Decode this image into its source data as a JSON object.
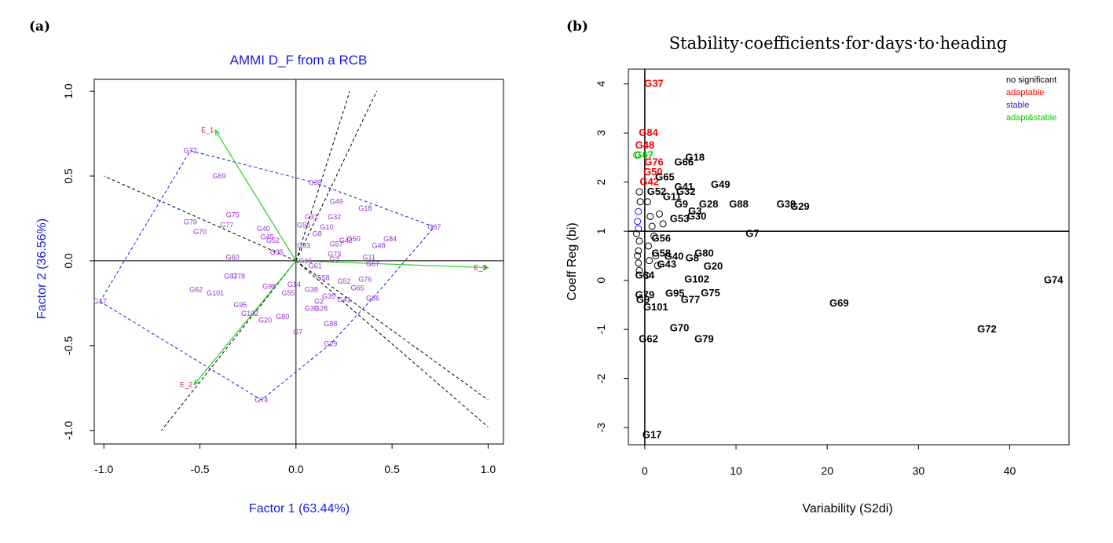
{
  "panel_a_label": "(a)",
  "panel_b_label": "(b)",
  "chart_data": [
    {
      "type": "scatter",
      "title": "AMMI D_F from a RCB",
      "xlabel": "Factor 1 (63.44%)",
      "ylabel": "Factor 2 (36.56%)",
      "xlim": [
        -1.05,
        1.08
      ],
      "ylim": [
        -1.08,
        1.07
      ],
      "xticks": [
        "-1.0",
        "-0.5",
        "0.0",
        "0.5",
        "1.0"
      ],
      "yticks": [
        "-1.0",
        "-0.5",
        "0.0",
        "0.5",
        "1.0"
      ],
      "genotype_color": "#9a2fd0",
      "environment_color": "#d7192c",
      "vector_color": "#1fd01f",
      "hull_color": "#1a1ae6",
      "environments": [
        {
          "label": "E_1",
          "x": -0.42,
          "y": 0.77
        },
        {
          "label": "E_2",
          "x": -0.53,
          "y": -0.73
        },
        {
          "label": "E_3",
          "x": 1.0,
          "y": -0.04
        }
      ],
      "genotypes": [
        {
          "label": "G72",
          "x": -0.55,
          "y": 0.65
        },
        {
          "label": "G69",
          "x": -0.4,
          "y": 0.5
        },
        {
          "label": "G75",
          "x": -0.33,
          "y": 0.27
        },
        {
          "label": "G79",
          "x": -0.55,
          "y": 0.23
        },
        {
          "label": "G77",
          "x": -0.36,
          "y": 0.21
        },
        {
          "label": "G70",
          "x": -0.5,
          "y": 0.17
        },
        {
          "label": "G39",
          "x": 0.1,
          "y": 0.46
        },
        {
          "label": "G49",
          "x": 0.21,
          "y": 0.35
        },
        {
          "label": "G18",
          "x": 0.36,
          "y": 0.31
        },
        {
          "label": "G37",
          "x": 0.72,
          "y": 0.2
        },
        {
          "label": "G84",
          "x": 0.49,
          "y": 0.13
        },
        {
          "label": "G48",
          "x": 0.43,
          "y": 0.09
        },
        {
          "label": "G50",
          "x": 0.3,
          "y": 0.13
        },
        {
          "label": "G42",
          "x": 0.26,
          "y": 0.12
        },
        {
          "label": "G32",
          "x": 0.2,
          "y": 0.26
        },
        {
          "label": "G31",
          "x": 0.08,
          "y": 0.26
        },
        {
          "label": "G10",
          "x": 0.16,
          "y": 0.2
        },
        {
          "label": "G56",
          "x": 0.04,
          "y": 0.21
        },
        {
          "label": "G11",
          "x": 0.38,
          "y": 0.02
        },
        {
          "label": "G57",
          "x": 0.21,
          "y": 0.1
        },
        {
          "label": "G40",
          "x": -0.17,
          "y": 0.19
        },
        {
          "label": "G45",
          "x": -0.15,
          "y": 0.14
        },
        {
          "label": "G52",
          "x": -0.12,
          "y": 0.12
        },
        {
          "label": "G60",
          "x": -0.33,
          "y": 0.02
        },
        {
          "label": "G35",
          "x": -0.1,
          "y": 0.05
        },
        {
          "label": "G97",
          "x": -0.34,
          "y": -0.09
        },
        {
          "label": "G78",
          "x": -0.3,
          "y": -0.09
        },
        {
          "label": "G62",
          "x": -0.52,
          "y": -0.17
        },
        {
          "label": "G101",
          "x": -0.42,
          "y": -0.19
        },
        {
          "label": "G95",
          "x": -0.29,
          "y": -0.26
        },
        {
          "label": "G17",
          "x": -1.02,
          "y": -0.24
        },
        {
          "label": "G102",
          "x": -0.24,
          "y": -0.31
        },
        {
          "label": "G20",
          "x": -0.16,
          "y": -0.35
        },
        {
          "label": "G80",
          "x": -0.07,
          "y": -0.33
        },
        {
          "label": "G98",
          "x": -0.14,
          "y": -0.15
        },
        {
          "label": "G55",
          "x": -0.04,
          "y": -0.19
        },
        {
          "label": "G7",
          "x": 0.01,
          "y": -0.42
        },
        {
          "label": "G74",
          "x": -0.18,
          "y": -0.82
        },
        {
          "label": "G88",
          "x": 0.18,
          "y": -0.37
        },
        {
          "label": "G29",
          "x": 0.18,
          "y": -0.49
        },
        {
          "label": "G30",
          "x": 0.08,
          "y": -0.28
        },
        {
          "label": "G28",
          "x": 0.13,
          "y": -0.28
        },
        {
          "label": "G2",
          "x": 0.12,
          "y": -0.24
        },
        {
          "label": "G41",
          "x": 0.25,
          "y": -0.23
        },
        {
          "label": "G35",
          "x": 0.17,
          "y": -0.21
        },
        {
          "label": "G66",
          "x": 0.4,
          "y": -0.22
        },
        {
          "label": "G65",
          "x": 0.32,
          "y": -0.16
        },
        {
          "label": "G76",
          "x": 0.36,
          "y": -0.11
        },
        {
          "label": "G52",
          "x": 0.25,
          "y": -0.12
        },
        {
          "label": "G58",
          "x": 0.14,
          "y": -0.1
        },
        {
          "label": "G67",
          "x": 0.4,
          "y": -0.02
        },
        {
          "label": "G73",
          "x": 0.2,
          "y": 0.04
        },
        {
          "label": "G3",
          "x": 0.2,
          "y": 0.01
        },
        {
          "label": "G14",
          "x": -0.01,
          "y": -0.14
        },
        {
          "label": "G93",
          "x": 0.04,
          "y": 0.09
        },
        {
          "label": "G61",
          "x": 0.1,
          "y": -0.03
        },
        {
          "label": "G38",
          "x": 0.08,
          "y": -0.17
        },
        {
          "label": "G8",
          "x": 0.11,
          "y": 0.16
        },
        {
          "label": "G16",
          "x": 0.05,
          "y": 0.0
        }
      ],
      "environment_rays": [
        {
          "x2": 0.28,
          "y2": 1.0
        },
        {
          "x2": 0.42,
          "y2": 1.0
        },
        {
          "x2": 1.0,
          "y2": -0.82
        },
        {
          "x2": 1.0,
          "y2": -0.98
        },
        {
          "x2": -1.0,
          "y2": 0.5
        },
        {
          "x2": -0.7,
          "y2": -1.0
        }
      ]
    },
    {
      "type": "scatter",
      "title": "Stability·coefficients·for·days·to·heading",
      "xlabel": "Variability (S2di)",
      "ylabel": "Coeff Reg (bi)",
      "xlim": [
        -1.8,
        46.5
      ],
      "ylim": [
        -3.35,
        4.3
      ],
      "xticks": [
        "0",
        "10",
        "20",
        "30",
        "40"
      ],
      "yticks": [
        "-3",
        "-2",
        "-1",
        "0",
        "1",
        "2",
        "3",
        "4"
      ],
      "reference_lines": {
        "x": 0,
        "y": 1
      },
      "legend_position": "top-right",
      "legend": [
        {
          "label": "no significant",
          "color": "#000000"
        },
        {
          "label": "adaptable",
          "color": "#ff0000"
        },
        {
          "label": "stable",
          "color": "#1a1ae6"
        },
        {
          "label": "adapt&stable",
          "color": "#00cc00"
        }
      ],
      "points": [
        {
          "label": "G37",
          "x": 1.0,
          "y": 4.0,
          "group": "adaptable"
        },
        {
          "label": "G84",
          "x": 0.4,
          "y": 3.0,
          "group": "adaptable"
        },
        {
          "label": "G48",
          "x": 0.0,
          "y": 2.75,
          "group": "adaptable"
        },
        {
          "label": "G67",
          "x": -0.1,
          "y": 2.55,
          "group": "adapt&stable"
        },
        {
          "label": "G76",
          "x": 1.0,
          "y": 2.4,
          "group": "adaptable"
        },
        {
          "label": "G50",
          "x": 0.9,
          "y": 2.2,
          "group": "adaptable"
        },
        {
          "label": "G42",
          "x": 0.5,
          "y": 2.0,
          "group": "adaptable"
        },
        {
          "label": "G18",
          "x": 5.5,
          "y": 2.5,
          "group": "no significant"
        },
        {
          "label": "G66",
          "x": 4.3,
          "y": 2.4,
          "group": "no significant"
        },
        {
          "label": "G65",
          "x": 2.2,
          "y": 2.1,
          "group": "no significant"
        },
        {
          "label": "G41",
          "x": 4.3,
          "y": 1.9,
          "group": "no significant"
        },
        {
          "label": "G32",
          "x": 4.5,
          "y": 1.8,
          "group": "no significant"
        },
        {
          "label": "G49",
          "x": 8.3,
          "y": 1.95,
          "group": "no significant"
        },
        {
          "label": "G52",
          "x": 1.3,
          "y": 1.8,
          "group": "no significant"
        },
        {
          "label": "G11",
          "x": 3.0,
          "y": 1.7,
          "group": "no significant"
        },
        {
          "label": "G28",
          "x": 7.0,
          "y": 1.55,
          "group": "no significant"
        },
        {
          "label": "G88",
          "x": 10.3,
          "y": 1.55,
          "group": "no significant"
        },
        {
          "label": "G39",
          "x": 15.5,
          "y": 1.55,
          "group": "no significant"
        },
        {
          "label": "G29",
          "x": 17.0,
          "y": 1.5,
          "group": "no significant"
        },
        {
          "label": "G30",
          "x": 5.7,
          "y": 1.3,
          "group": "no significant"
        },
        {
          "label": "G3",
          "x": 5.5,
          "y": 1.4,
          "group": "no significant"
        },
        {
          "label": "G9",
          "x": 4.0,
          "y": 1.55,
          "group": "no significant"
        },
        {
          "label": "G53",
          "x": 3.8,
          "y": 1.25,
          "group": "no significant"
        },
        {
          "label": "G7",
          "x": 11.8,
          "y": 0.95,
          "group": "no significant"
        },
        {
          "label": "G56",
          "x": 1.8,
          "y": 0.85,
          "group": "no significant"
        },
        {
          "label": "G58",
          "x": 1.8,
          "y": 0.55,
          "group": "no significant"
        },
        {
          "label": "G80",
          "x": 6.5,
          "y": 0.55,
          "group": "no significant"
        },
        {
          "label": "G40",
          "x": 3.2,
          "y": 0.48,
          "group": "no significant"
        },
        {
          "label": "G8",
          "x": 5.2,
          "y": 0.45,
          "group": "no significant"
        },
        {
          "label": "G43",
          "x": 2.4,
          "y": 0.32,
          "group": "no significant"
        },
        {
          "label": "G20",
          "x": 7.5,
          "y": 0.28,
          "group": "no significant"
        },
        {
          "label": "G34",
          "x": 0.0,
          "y": 0.1,
          "group": "no significant"
        },
        {
          "label": "G102",
          "x": 5.7,
          "y": 0.02,
          "group": "no significant"
        },
        {
          "label": "G74",
          "x": 44.8,
          "y": 0.0,
          "group": "no significant"
        },
        {
          "label": "G95",
          "x": 3.3,
          "y": -0.27,
          "group": "no significant"
        },
        {
          "label": "G75",
          "x": 7.2,
          "y": -0.26,
          "group": "no significant"
        },
        {
          "label": "G79b",
          "x": 0.0,
          "y": -0.3,
          "group": "no significant"
        },
        {
          "label": "G77",
          "x": 5.0,
          "y": -0.4,
          "group": "no significant"
        },
        {
          "label": "G9b",
          "x": -0.2,
          "y": -0.4,
          "group": "no significant"
        },
        {
          "label": "G101",
          "x": 1.2,
          "y": -0.55,
          "group": "no significant"
        },
        {
          "label": "G69",
          "x": 21.3,
          "y": -0.47,
          "group": "no significant"
        },
        {
          "label": "G70",
          "x": 3.8,
          "y": -0.97,
          "group": "no significant"
        },
        {
          "label": "G72",
          "x": 37.5,
          "y": -1.0,
          "group": "no significant"
        },
        {
          "label": "G62",
          "x": 0.4,
          "y": -1.2,
          "group": "no significant"
        },
        {
          "label": "G79",
          "x": 6.5,
          "y": -1.2,
          "group": "no significant"
        },
        {
          "label": "G17",
          "x": 0.8,
          "y": -3.15,
          "group": "no significant"
        }
      ],
      "cluster_points": [
        {
          "x": -0.9,
          "y": 2.55,
          "group": "adapt&stable"
        },
        {
          "x": -0.6,
          "y": 1.8,
          "group": "no significant"
        },
        {
          "x": -0.5,
          "y": 1.6,
          "group": "no significant"
        },
        {
          "x": -0.7,
          "y": 1.4,
          "group": "stable"
        },
        {
          "x": -0.8,
          "y": 1.2,
          "group": "stable"
        },
        {
          "x": -0.7,
          "y": 1.05,
          "group": "stable"
        },
        {
          "x": -0.9,
          "y": 0.95,
          "group": "no significant"
        },
        {
          "x": -0.6,
          "y": 0.8,
          "group": "no significant"
        },
        {
          "x": -0.7,
          "y": 0.6,
          "group": "no significant"
        },
        {
          "x": -0.8,
          "y": 0.5,
          "group": "no significant"
        },
        {
          "x": -0.7,
          "y": 0.35,
          "group": "no significant"
        },
        {
          "x": -0.6,
          "y": 0.2,
          "group": "no significant"
        },
        {
          "x": 0.3,
          "y": 1.6,
          "group": "no significant"
        },
        {
          "x": 0.6,
          "y": 1.3,
          "group": "no significant"
        },
        {
          "x": 0.8,
          "y": 1.1,
          "group": "no significant"
        },
        {
          "x": 1.0,
          "y": 0.9,
          "group": "no significant"
        },
        {
          "x": 0.4,
          "y": 0.7,
          "group": "no significant"
        },
        {
          "x": 1.2,
          "y": 0.5,
          "group": "no significant"
        },
        {
          "x": 0.5,
          "y": 0.4,
          "group": "no significant"
        },
        {
          "x": 1.6,
          "y": 1.35,
          "group": "no significant"
        },
        {
          "x": 2.0,
          "y": 1.15,
          "group": "no significant"
        },
        {
          "x": 1.4,
          "y": 0.3,
          "group": "no significant"
        },
        {
          "x": 0.2,
          "y": 0.1,
          "group": "no significant"
        }
      ]
    }
  ]
}
